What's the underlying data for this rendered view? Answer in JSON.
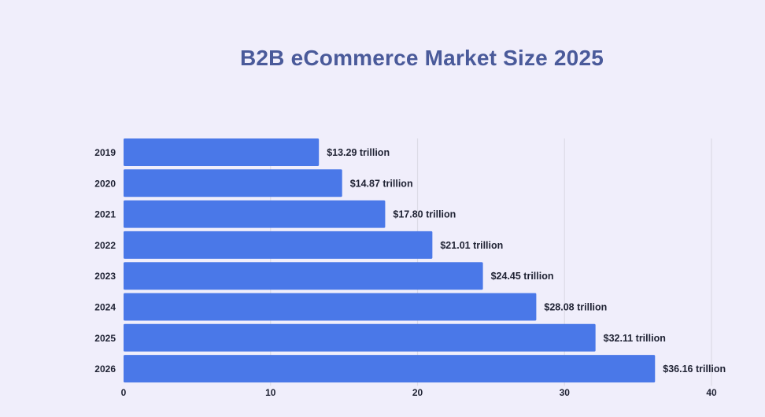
{
  "title": "B2B eCommerce Market Size 2025",
  "colors": {
    "background": "#f0eefb",
    "bar": "#4a78e8",
    "grid": "#dcdbe6",
    "title": "#4a5a9a",
    "text": "#1f2233"
  },
  "chart_data": {
    "type": "bar",
    "orientation": "horizontal",
    "title": "B2B eCommerce Market Size 2025",
    "xlabel": "",
    "ylabel": "",
    "categories": [
      "2019",
      "2020",
      "2021",
      "2022",
      "2023",
      "2024",
      "2025",
      "2026"
    ],
    "values": [
      13.29,
      14.87,
      17.8,
      21.01,
      24.45,
      28.08,
      32.11,
      36.16
    ],
    "data_labels": [
      "$13.29 trillion",
      "$14.87 trillion",
      "$17.80 trillion",
      "$21.01 trillion",
      "$24.45 trillion",
      "$28.08 trillion",
      "$32.11 trillion",
      "$36.16 trillion"
    ],
    "xlim": [
      0,
      40
    ],
    "xticks": [
      0,
      10,
      20,
      30,
      40
    ],
    "grid": "vertical",
    "legend": "none"
  }
}
